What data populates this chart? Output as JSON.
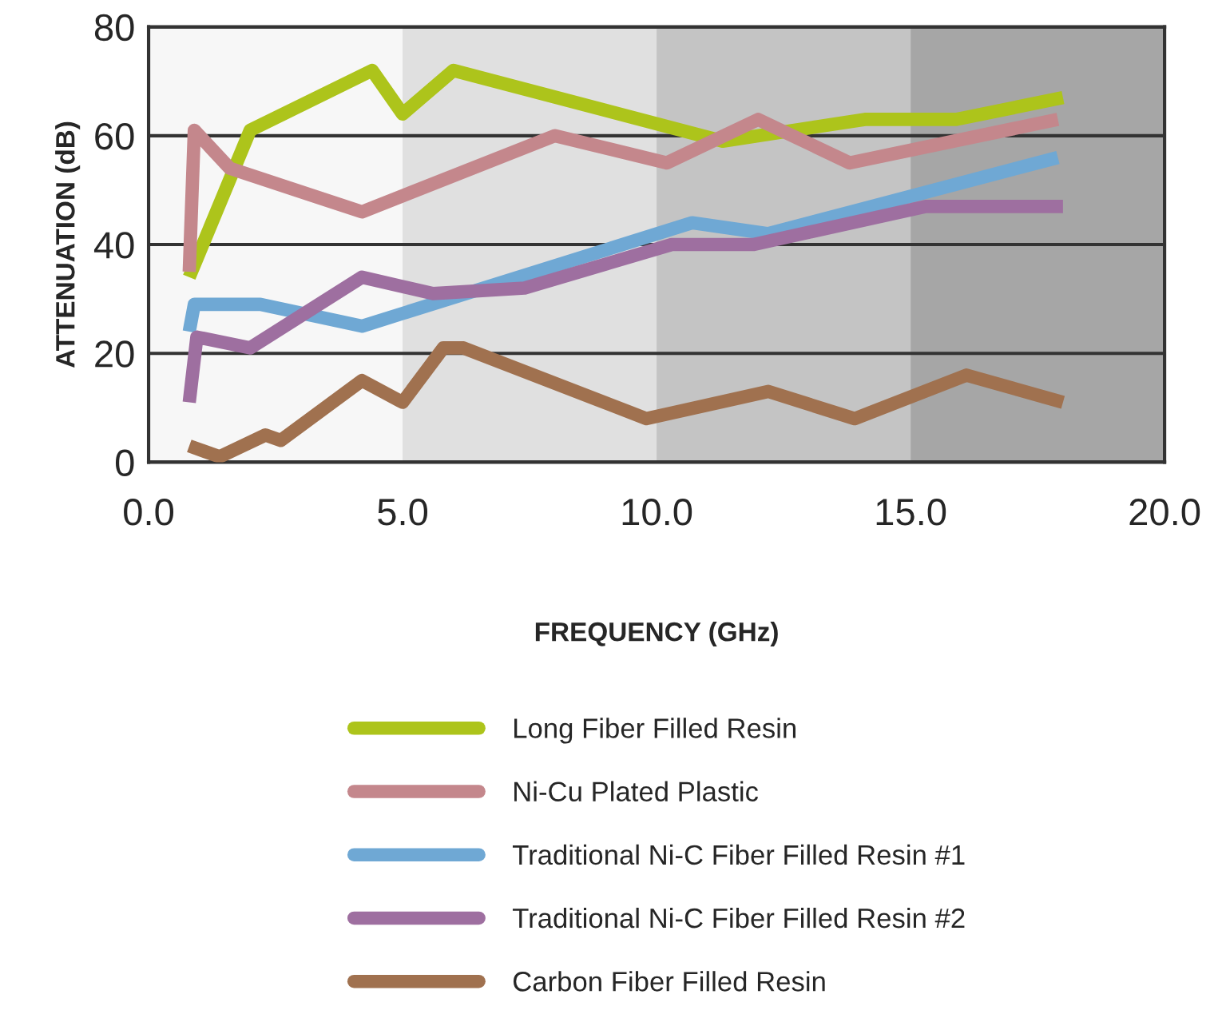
{
  "chart_data": {
    "type": "line",
    "xlabel": "FREQUENCY (GHz)",
    "ylabel": "ATTENUATION (dB)",
    "xlim": [
      0,
      20
    ],
    "xticks": [
      {
        "value": 0,
        "label": "0.0"
      },
      {
        "value": 5,
        "label": "5.0"
      },
      {
        "value": 10,
        "label": "10.0"
      },
      {
        "value": 15,
        "label": "15.0"
      },
      {
        "value": 20,
        "label": "20.0"
      }
    ],
    "ylim": [
      0,
      80
    ],
    "yticks": [
      0,
      20,
      40,
      60,
      80
    ],
    "grid": "y",
    "legend": "bottom",
    "marker": "none",
    "line_style": "solid",
    "bands": [
      {
        "axis": "x",
        "from": 0,
        "to": 5,
        "color": "#f7f7f7"
      },
      {
        "axis": "x",
        "from": 5,
        "to": 10,
        "color": "#e0e0e0"
      },
      {
        "axis": "x",
        "from": 10,
        "to": 15,
        "color": "#c4c4c4"
      },
      {
        "axis": "x",
        "from": 15,
        "to": 20,
        "color": "#a6a6a6"
      }
    ],
    "series": [
      {
        "name": "Long Fiber Filled Resin",
        "color": "#adc41b",
        "x": [
          0.8,
          2.0,
          4.4,
          5.0,
          6.0,
          11.3,
          14.1,
          15.9,
          18.0
        ],
        "values": [
          34,
          61,
          72,
          64,
          72,
          59,
          63,
          63,
          67
        ]
      },
      {
        "name": "Ni-Cu Plated Plastic",
        "color": "#c4878c",
        "x": [
          0.8,
          0.9,
          1.6,
          4.2,
          8.0,
          10.2,
          12.0,
          13.8,
          17.9
        ],
        "values": [
          35,
          61,
          54,
          46,
          60,
          55,
          63,
          55,
          63
        ]
      },
      {
        "name": "Traditional Ni-C Fiber Filled Resin #1",
        "color": "#6fa8d4",
        "x": [
          0.8,
          0.9,
          2.2,
          4.2,
          10.7,
          12.2,
          17.9
        ],
        "values": [
          24,
          29,
          29,
          25,
          44,
          42,
          56
        ]
      },
      {
        "name": "Traditional Ni-C Fiber Filled Resin #2",
        "color": "#9e6fa0",
        "x": [
          0.8,
          0.95,
          2.0,
          4.2,
          5.6,
          7.4,
          10.3,
          11.9,
          15.3,
          18.0
        ],
        "values": [
          11,
          23,
          21,
          34,
          31,
          32,
          40,
          40,
          47,
          47
        ]
      },
      {
        "name": "Carbon Fiber Filled Resin",
        "color": "#a0714f",
        "x": [
          0.8,
          1.4,
          2.3,
          2.6,
          4.2,
          5.0,
          5.8,
          6.2,
          9.8,
          12.2,
          13.9,
          16.1,
          18.0
        ],
        "values": [
          3,
          1,
          5,
          4,
          15,
          11,
          21,
          21,
          8,
          13,
          8,
          16,
          11
        ]
      }
    ]
  }
}
